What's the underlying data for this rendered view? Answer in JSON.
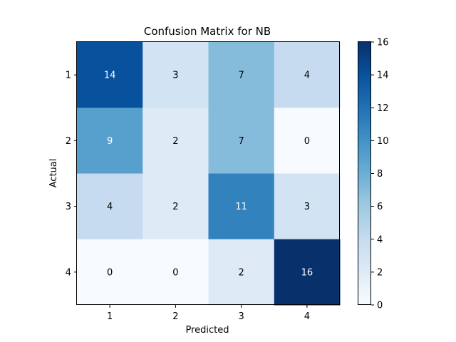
{
  "chart_data": {
    "type": "heatmap",
    "title": "Confusion Matrix for NB",
    "xlabel": "Predicted",
    "ylabel": "Actual",
    "x_categories": [
      "1",
      "2",
      "3",
      "4"
    ],
    "y_categories": [
      "1",
      "2",
      "3",
      "4"
    ],
    "matrix": [
      [
        14,
        3,
        7,
        4
      ],
      [
        9,
        2,
        7,
        0
      ],
      [
        4,
        2,
        11,
        3
      ],
      [
        0,
        0,
        2,
        16
      ]
    ],
    "colorbar": {
      "min": 0,
      "max": 16,
      "ticks": [
        "0",
        "2",
        "4",
        "6",
        "8",
        "10",
        "12",
        "14",
        "16"
      ]
    },
    "colormap": "Blues",
    "colormap_stops": [
      "#f7fbff",
      "#deebf7",
      "#c6dbef",
      "#9ecae1",
      "#6baed6",
      "#4292c6",
      "#2171b5",
      "#08519c",
      "#08306b"
    ],
    "text_colors": {
      "light": "#ffffff",
      "dark": "#000000"
    }
  }
}
